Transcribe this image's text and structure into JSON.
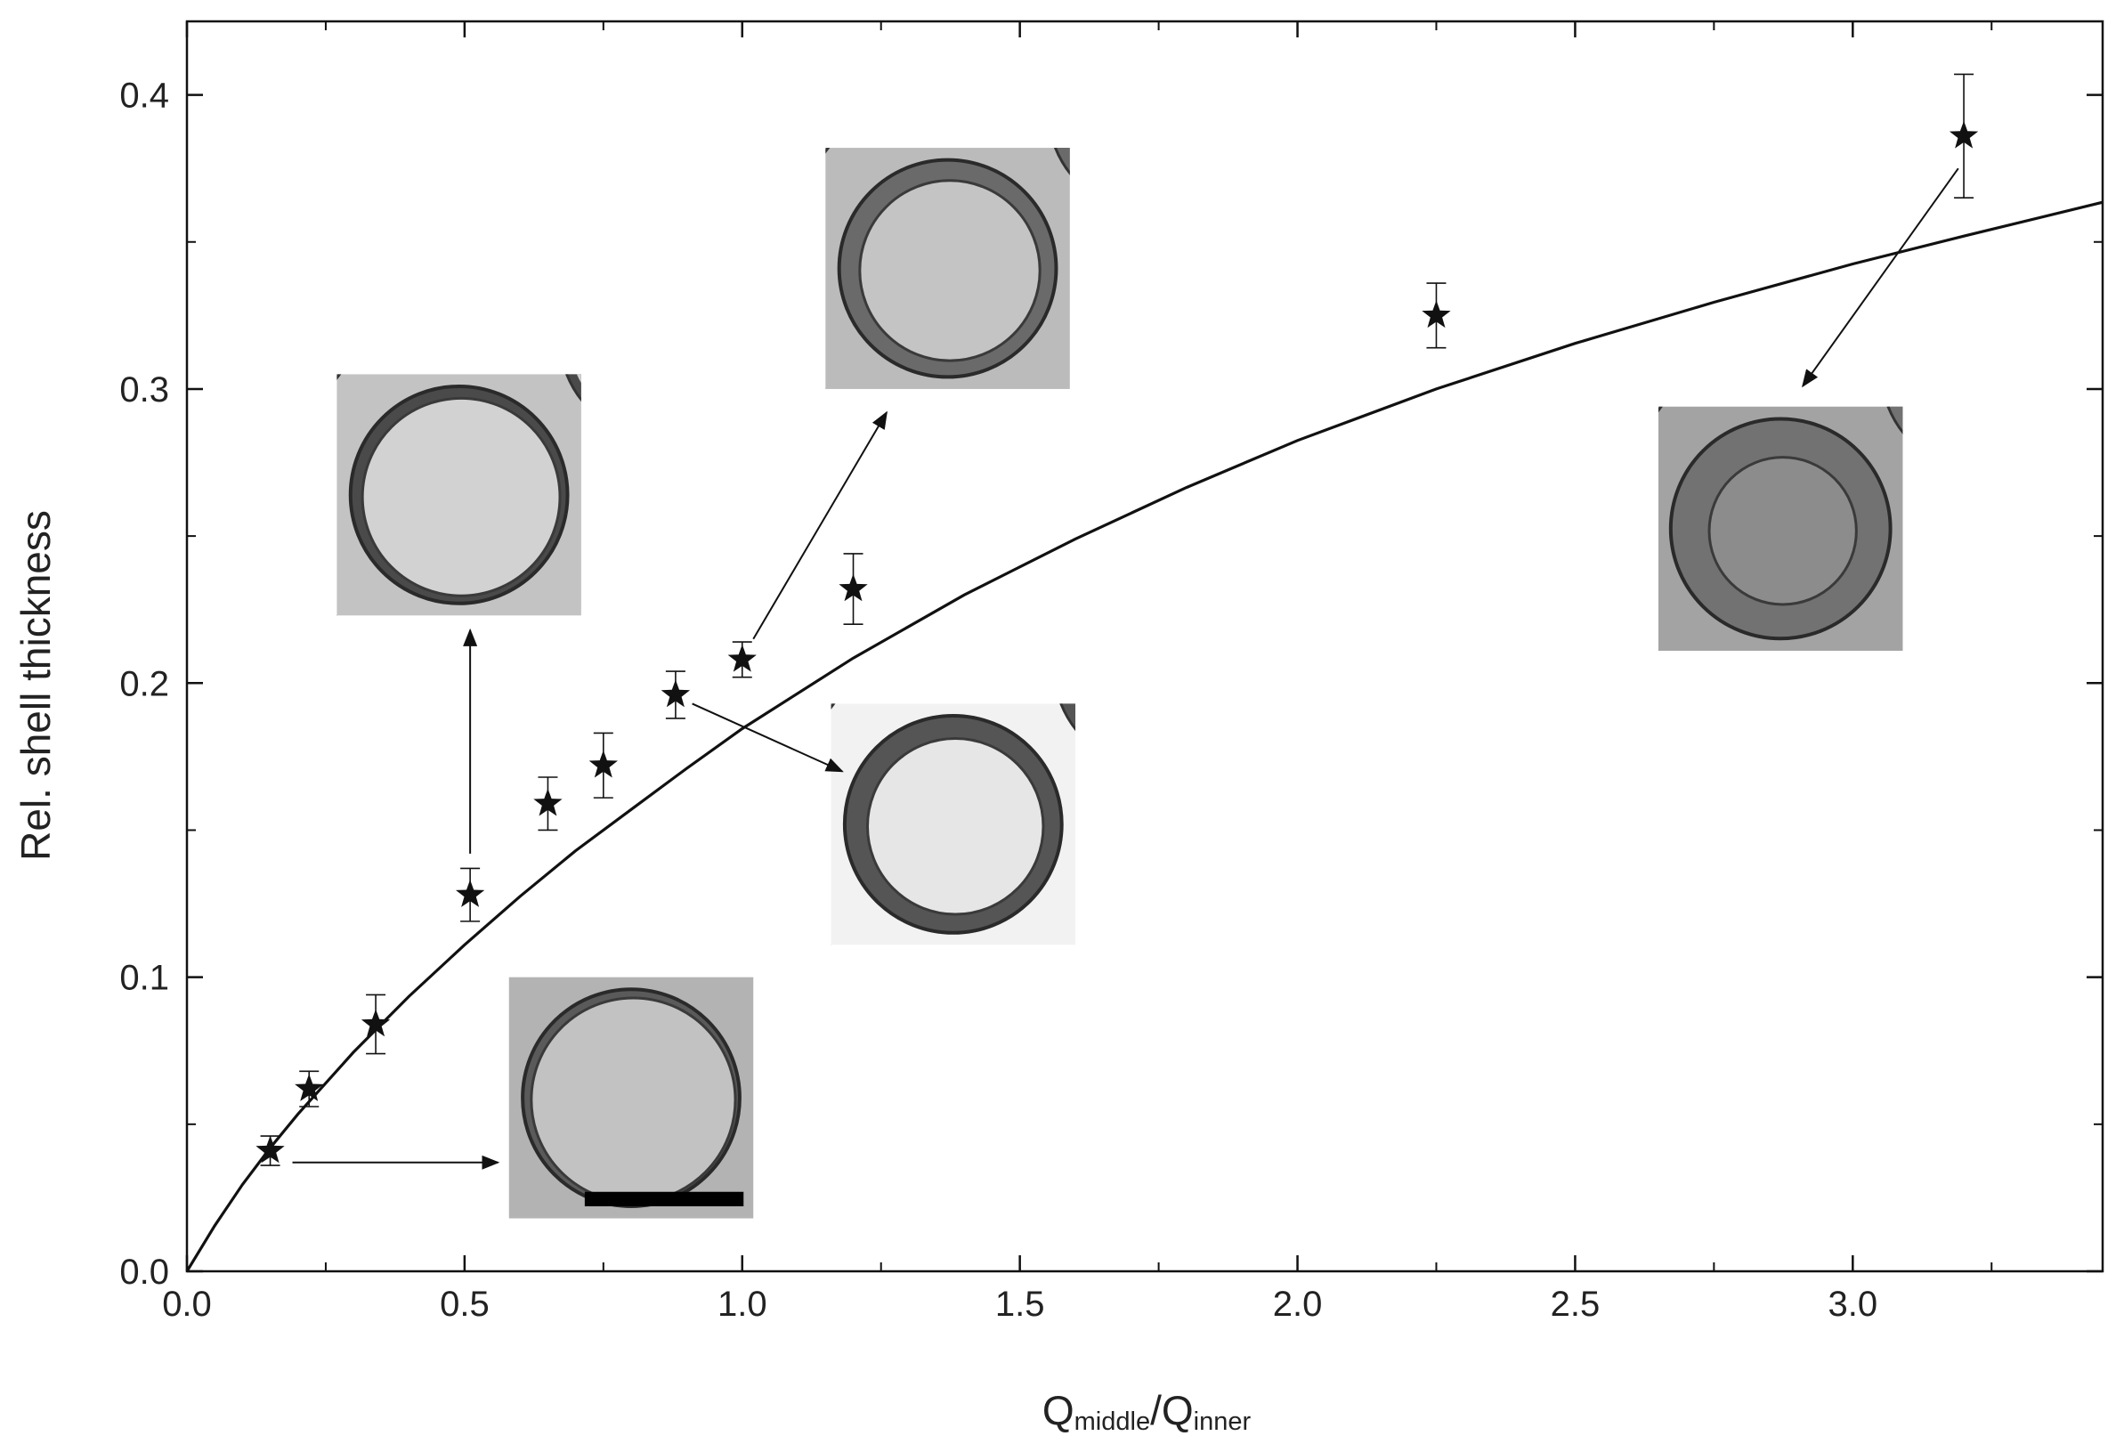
{
  "chart_data": {
    "type": "scatter",
    "xlabel": {
      "main": "Q",
      "sub": "middle",
      "sep": "/Q",
      "sub2": "inner"
    },
    "ylabel": "Rel. shell thickness",
    "xlim": [
      0.0,
      3.45
    ],
    "ylim": [
      0.0,
      0.425
    ],
    "x_ticks": [
      0.0,
      0.5,
      1.0,
      1.5,
      2.0,
      2.5,
      3.0
    ],
    "x_tick_labels": [
      "0.0",
      "0.5",
      "1.0",
      "1.5",
      "2.0",
      "2.5",
      "3.0"
    ],
    "x_minor_ticks": [
      0.25,
      0.75,
      1.25,
      1.75,
      2.25,
      2.75,
      3.25
    ],
    "y_ticks": [
      0.0,
      0.1,
      0.2,
      0.3,
      0.4
    ],
    "y_tick_labels": [
      "0.0",
      "0.1",
      "0.2",
      "0.3",
      "0.4"
    ],
    "y_minor_ticks": [
      0.05,
      0.15,
      0.25,
      0.35
    ],
    "grid": false,
    "series": [
      {
        "marker": "star",
        "points": [
          {
            "x": 0.15,
            "y": 0.041,
            "err": 0.005
          },
          {
            "x": 0.22,
            "y": 0.062,
            "err": 0.006
          },
          {
            "x": 0.34,
            "y": 0.084,
            "err": 0.01
          },
          {
            "x": 0.51,
            "y": 0.128,
            "err": 0.009
          },
          {
            "x": 0.65,
            "y": 0.159,
            "err": 0.009
          },
          {
            "x": 0.75,
            "y": 0.172,
            "err": 0.011
          },
          {
            "x": 0.88,
            "y": 0.196,
            "err": 0.008
          },
          {
            "x": 1.0,
            "y": 0.208,
            "err": 0.006
          },
          {
            "x": 1.2,
            "y": 0.232,
            "err": 0.012
          },
          {
            "x": 2.25,
            "y": 0.325,
            "err": 0.011
          },
          {
            "x": 3.2,
            "y": 0.386,
            "err": 0.021
          }
        ]
      },
      {
        "type": "line",
        "fit": true,
        "x": [
          0.0,
          0.05,
          0.1,
          0.15,
          0.2,
          0.3,
          0.4,
          0.5,
          0.6,
          0.7,
          0.8,
          0.9,
          1.0,
          1.2,
          1.4,
          1.6,
          1.8,
          2.0,
          2.25,
          2.5,
          2.75,
          3.0,
          3.2,
          3.45
        ],
        "y": [
          0.0,
          0.0155,
          0.0295,
          0.042,
          0.0535,
          0.0745,
          0.0935,
          0.111,
          0.1275,
          0.143,
          0.157,
          0.171,
          0.1845,
          0.2085,
          0.23,
          0.249,
          0.2665,
          0.2825,
          0.3,
          0.3155,
          0.3295,
          0.3425,
          0.352,
          0.3635
        ]
      }
    ],
    "annotations": [
      {
        "from": [
          0.19,
          0.037
        ],
        "to": [
          0.56,
          0.037
        ]
      },
      {
        "from": [
          0.51,
          0.142
        ],
        "to": [
          0.51,
          0.218
        ]
      },
      {
        "from": [
          1.02,
          0.215
        ],
        "to": [
          1.26,
          0.292
        ]
      },
      {
        "from": [
          0.91,
          0.193
        ],
        "to": [
          1.18,
          0.17
        ]
      },
      {
        "from": [
          3.19,
          0.375
        ],
        "to": [
          2.91,
          0.301
        ]
      }
    ],
    "insets": [
      {
        "name": "micrograph-thin-shell",
        "x": [
          0.58,
          1.02
        ],
        "y": [
          0.018,
          0.1
        ],
        "tone": "#b3b3b3",
        "shell": "thin",
        "scale_bar": true
      },
      {
        "name": "micrograph-shell-0.5",
        "x": [
          0.27,
          0.71
        ],
        "y": [
          0.223,
          0.305
        ],
        "tone": "#c3c3c3",
        "shell": "medium"
      },
      {
        "name": "micrograph-shell-1.0",
        "x": [
          1.15,
          1.59
        ],
        "y": [
          0.3,
          0.382
        ],
        "tone": "#bbbbbb",
        "shell": "thick"
      },
      {
        "name": "micrograph-shell-0.88",
        "x": [
          1.16,
          1.6
        ],
        "y": [
          0.111,
          0.193
        ],
        "tone": "#f2f2f2",
        "shell": "thick-dark"
      },
      {
        "name": "micrograph-shell-3.2",
        "x": [
          2.65,
          3.09
        ],
        "y": [
          0.211,
          0.294
        ],
        "tone": "#a3a3a3",
        "shell": "very-thick"
      }
    ]
  }
}
